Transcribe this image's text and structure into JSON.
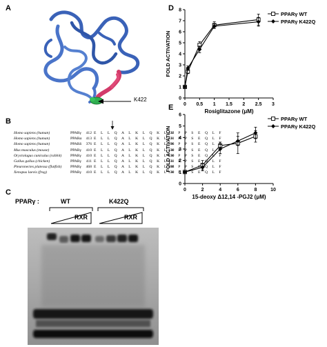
{
  "panels": {
    "A": {
      "letter": "A",
      "annotation": "K422"
    },
    "B": {
      "letter": "B",
      "rows": [
        {
          "species": "Homo sapiens (human)",
          "gene": "PPARγ",
          "start": "412",
          "sequence": "E L L Q A L K L Q K L H P P S E Q L F",
          "end": "432"
        },
        {
          "species": "Homo sapiens (human)",
          "gene": "PPARα",
          "start": "413",
          "sequence": "E L L Q A L K L Q K L H P P S E Q L F",
          "end": "431"
        },
        {
          "species": "Homo sapiens (human)",
          "gene": "PPARδ",
          "start": "376",
          "sequence": "E L L Q A L K L Q K L H P P S E Q L F",
          "end": "396"
        },
        {
          "species": "Mus musculus (mouse)",
          "gene": "PPARγ",
          "start": "410",
          "sequence": "E L L Q A L K L Q K L H P P S E Q L F",
          "end": "430"
        },
        {
          "species": "Oryctolagus cuniculus (rabbit)",
          "gene": "PPARγ",
          "start": "410",
          "sequence": "E L L Q A L K L Q K L H P P S E Q L F",
          "end": "430"
        },
        {
          "species": "Gallus gallus (chicken)",
          "gene": "PPARγ",
          "start": "411",
          "sequence": "E L L Q A L K L Q K L H P P S E Q L F",
          "end": "431"
        },
        {
          "species": "Pleuronectes platessa (flatfish)",
          "gene": "PPARγ",
          "start": "468",
          "sequence": "E L L Q A L K L Q K L H P P S E Q L F",
          "end": "488"
        },
        {
          "species": "Xenopus laevis (frog)",
          "gene": "PPARγ",
          "start": "410",
          "sequence": "E L L Q A L K L Q K L H P P S E Q L F",
          "end": "430"
        }
      ]
    },
    "C": {
      "letter": "C",
      "label": "PPARγ :",
      "groups": [
        {
          "name": "WT",
          "treatment": "RXR"
        },
        {
          "name": "K422Q",
          "treatment": "RXR"
        }
      ]
    }
  },
  "chart_data": [
    {
      "panel": "D",
      "type": "line",
      "xlabel": "Rosiglitazone (μM)",
      "ylabel": "FOLD ACTIVATION",
      "xlim": [
        0,
        3
      ],
      "ylim": [
        0,
        8
      ],
      "xticks": [
        0,
        0.5,
        1,
        1.5,
        2,
        2.5,
        3
      ],
      "yticks": [
        0,
        1,
        2,
        3,
        4,
        5,
        6,
        7,
        8
      ],
      "legend": "top-right",
      "series": [
        {
          "name": "PPARγ WT",
          "marker": "open-square",
          "x": [
            0,
            0.1,
            0.5,
            1,
            2.5
          ],
          "y": [
            1,
            2.4,
            4.8,
            6.6,
            7.1
          ],
          "err": [
            0,
            0.2,
            0.3,
            0.3,
            0.5
          ]
        },
        {
          "name": "PPARγ K422Q",
          "marker": "filled-diamond",
          "x": [
            0,
            0.1,
            0.5,
            1,
            2.5
          ],
          "y": [
            1,
            2.7,
            4.4,
            6.5,
            6.9
          ],
          "err": [
            0,
            0.2,
            0.3,
            0.2,
            0.4
          ]
        }
      ]
    },
    {
      "panel": "E",
      "type": "line",
      "xlabel": "15-deoxy Δ12,14 -PGJ2 (μM)",
      "ylabel": "FOLD ACTIVATION",
      "xlim": [
        0,
        10
      ],
      "ylim": [
        0,
        6
      ],
      "xticks": [
        0,
        2,
        4,
        6,
        8,
        10
      ],
      "yticks": [
        0,
        1,
        2,
        3,
        4,
        5,
        6
      ],
      "legend": "top-right",
      "series": [
        {
          "name": "PPARγ WT",
          "marker": "open-square",
          "x": [
            0,
            2,
            4,
            6,
            8
          ],
          "y": [
            1,
            1.6,
            3.3,
            3.5,
            4.1
          ],
          "err": [
            0,
            0.4,
            0.3,
            0.9,
            0.5
          ]
        },
        {
          "name": "PPARγ K422Q",
          "marker": "filled-diamond",
          "x": [
            0,
            2,
            4,
            6,
            8
          ],
          "y": [
            1,
            1.4,
            3.0,
            3.7,
            4.4
          ],
          "err": [
            0,
            0.3,
            0.4,
            0.4,
            0.5
          ]
        }
      ]
    }
  ]
}
